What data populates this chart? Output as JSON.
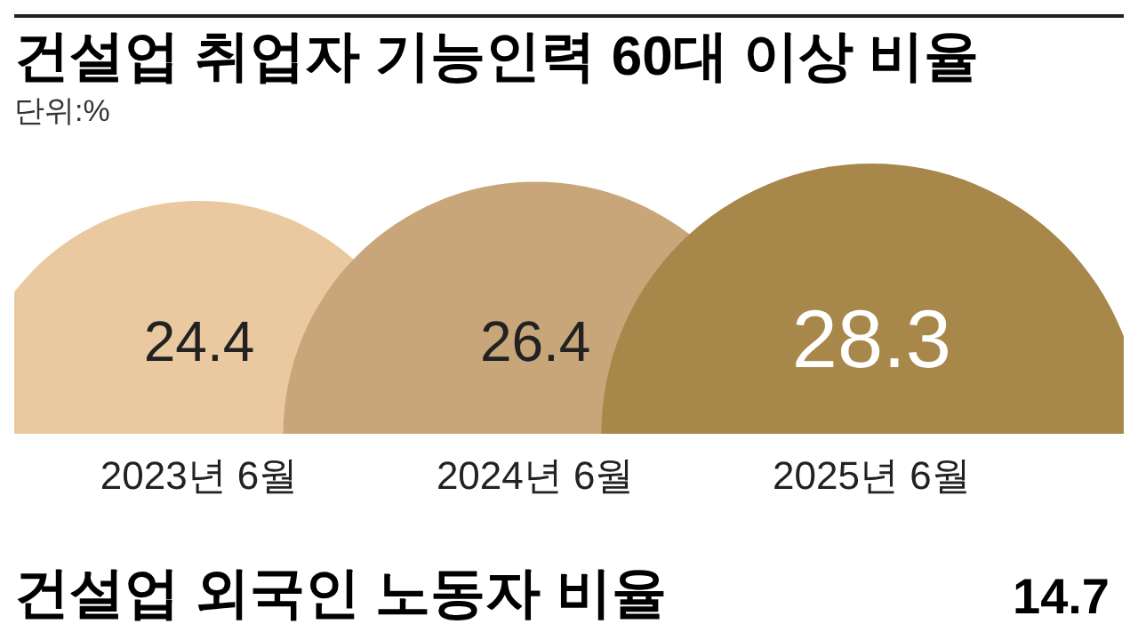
{
  "chart_data": [
    {
      "type": "other",
      "title": "건설업 취업자 기능인력 60대 이상 비율",
      "subtitle": "단위:%",
      "categories": [
        "2023년 6월",
        "2024년 6월",
        "2025년 6월"
      ],
      "values": [
        24.4,
        26.4,
        28.3
      ],
      "colors": [
        "#ebc9a0",
        "#c9a57a",
        "#a8874a"
      ],
      "data_labels": true
    },
    {
      "type": "other",
      "title": "건설업 외국인 노동자 비율",
      "annotations": [
        "14.7"
      ]
    }
  ]
}
